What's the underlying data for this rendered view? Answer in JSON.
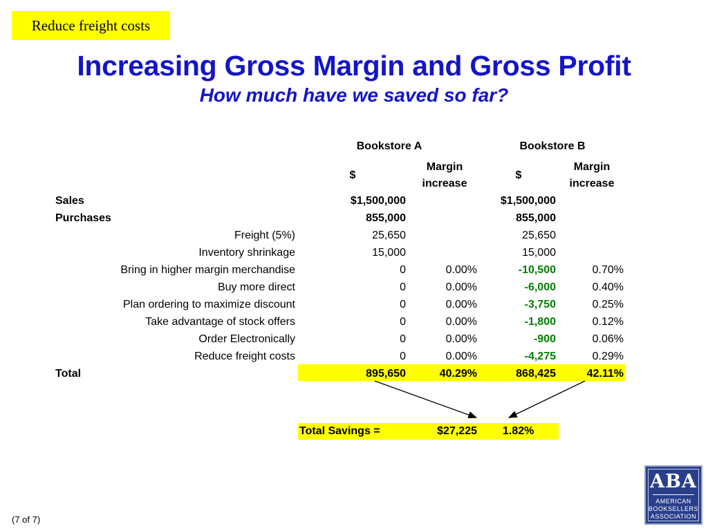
{
  "tag": "Reduce freight costs",
  "title": "Increasing Gross Margin and Gross Profit",
  "subtitle": "How much have we saved so far?",
  "headers": {
    "store_a": "Bookstore A",
    "store_b": "Bookstore B",
    "dollar_a": "$",
    "margin_a_1": "Margin",
    "margin_a_2": "increase",
    "dollar_b": "$",
    "margin_b_1": "Margin",
    "margin_b_2": "increase"
  },
  "rows": [
    {
      "label": "Sales",
      "a_val": "$1,500,000",
      "a_pct": "",
      "b_val": "$1,500,000",
      "b_pct": ""
    },
    {
      "label": "Purchases",
      "a_val": "855,000",
      "a_pct": "",
      "b_val": "855,000",
      "b_pct": ""
    },
    {
      "label": "Freight (5%)",
      "a_val": "25,650",
      "a_pct": "",
      "b_val": "25,650",
      "b_pct": ""
    },
    {
      "label": "Inventory shrinkage",
      "a_val": "15,000",
      "a_pct": "",
      "b_val": "15,000",
      "b_pct": ""
    },
    {
      "label": "Bring in higher margin merchandise",
      "a_val": "0",
      "a_pct": "0.00%",
      "b_val": "-10,500",
      "b_pct": "0.70%"
    },
    {
      "label": "Buy more direct",
      "a_val": "0",
      "a_pct": "0.00%",
      "b_val": "-6,000",
      "b_pct": "0.40%"
    },
    {
      "label": "Plan ordering to maximize discount",
      "a_val": "0",
      "a_pct": "0.00%",
      "b_val": "-3,750",
      "b_pct": "0.25%"
    },
    {
      "label": "Take advantage of stock offers",
      "a_val": "0",
      "a_pct": "0.00%",
      "b_val": "-1,800",
      "b_pct": "0.12%"
    },
    {
      "label": "Order Electronically",
      "a_val": "0",
      "a_pct": "0.00%",
      "b_val": "-900",
      "b_pct": "0.06%"
    },
    {
      "label": "Reduce freight costs",
      "a_val": "0",
      "a_pct": "0.00%",
      "b_val": "-4,275",
      "b_pct": "0.29%"
    },
    {
      "label": "Total",
      "a_val": "895,650",
      "a_pct": "40.29%",
      "b_val": "868,425",
      "b_pct": "42.11%"
    }
  ],
  "savings": {
    "label": "Total Savings =",
    "amount": "$27,225",
    "pct": "1.82%"
  },
  "footer": "(7 of 7)",
  "logo": {
    "mark": "ABA",
    "line1": "AMERICAN",
    "line2": "BOOKSELLERS",
    "line3": "ASSOCIATION"
  },
  "colors": {
    "title": "#1414c8",
    "highlight": "#ffff00",
    "negative": "#008000",
    "logo_bg": "#2a3f8c"
  }
}
